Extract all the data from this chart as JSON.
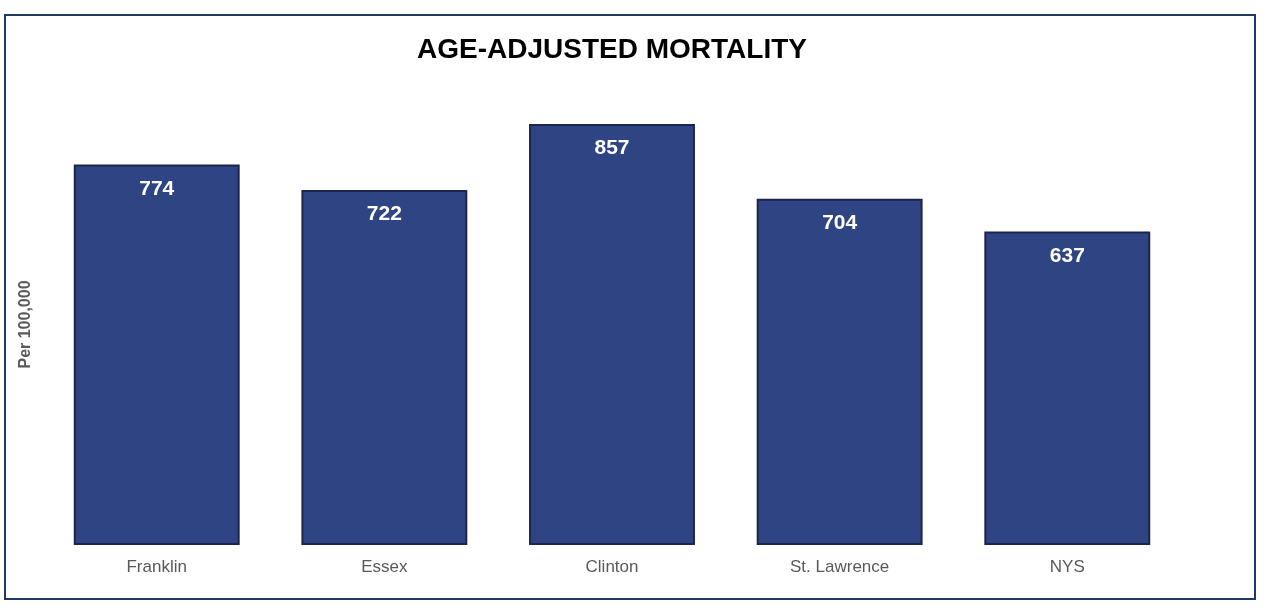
{
  "chart_data": {
    "type": "bar",
    "title": "AGE-ADJUSTED MORTALITY",
    "ylabel": "Per 100,000",
    "categories": [
      "Franklin",
      "Essex",
      "Clinton",
      "St. Lawrence",
      "NYS"
    ],
    "values": [
      774,
      722,
      857,
      704,
      637
    ],
    "color": "#2f4482",
    "data_labels": true,
    "grid": false,
    "tick_labels": "x"
  }
}
